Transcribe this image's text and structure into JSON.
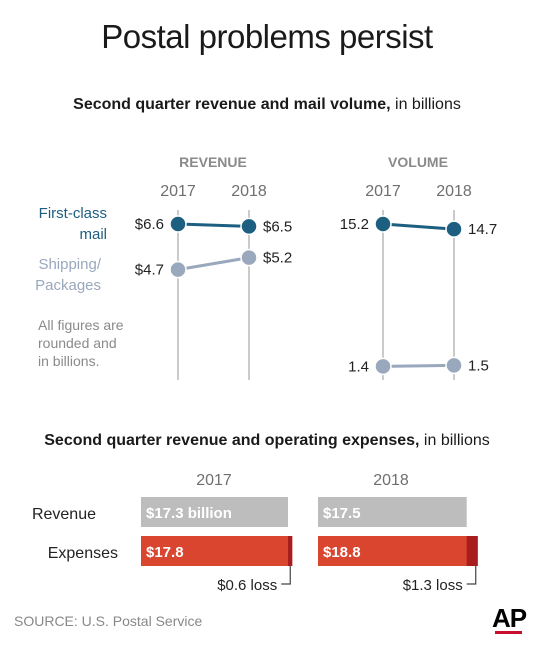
{
  "title": "Postal problems persist",
  "subtitle1": {
    "bold": "Second quarter revenue and mail volume,",
    "normal": " in billions"
  },
  "subtitle2": {
    "bold": "Second quarter revenue and operating expenses,",
    "normal": " in billions"
  },
  "source": "SOURCE: U.S. Postal Service",
  "logo": "AP",
  "colors": {
    "first_class": "#1c5f80",
    "shipping": "#99a8bc",
    "revenue_bar": "#bdbdbd",
    "expense_bar": "#d9452f",
    "loss": "#a81e1e",
    "axis": "#a8a8a8",
    "muted_text": "#8a8a8a"
  },
  "chart_data": [
    {
      "type": "line",
      "panel_label": "REVENUE",
      "x": [
        "2017",
        "2018"
      ],
      "series": [
        {
          "name": "First-class mail",
          "values": [
            6.6,
            6.5
          ],
          "labels": [
            "$6.6",
            "$6.5"
          ]
        },
        {
          "name": "Shipping/ Packages",
          "values": [
            4.7,
            5.2
          ],
          "labels": [
            "$4.7",
            "$5.2"
          ]
        }
      ]
    },
    {
      "type": "line",
      "panel_label": "VOLUME",
      "x": [
        "2017",
        "2018"
      ],
      "series": [
        {
          "name": "First-class mail",
          "values": [
            15.2,
            14.7
          ],
          "labels": [
            "15.2",
            "14.7"
          ]
        },
        {
          "name": "Shipping/ Packages",
          "values": [
            1.4,
            1.5
          ],
          "labels": [
            "1.4",
            "1.5"
          ]
        }
      ]
    },
    {
      "type": "bar",
      "categories": [
        "2017",
        "2018"
      ],
      "series": [
        {
          "name": "Revenue",
          "values": [
            17.3,
            17.5
          ],
          "labels": [
            "$17.3 billion",
            "$17.5"
          ]
        },
        {
          "name": "Expenses",
          "values": [
            17.8,
            18.8
          ],
          "labels": [
            "$17.8",
            "$18.8"
          ]
        }
      ],
      "loss": {
        "values": [
          0.6,
          1.3
        ],
        "labels": [
          "$0.6 loss",
          "$1.3 loss"
        ]
      }
    }
  ],
  "legend": {
    "first_class": [
      "First-class",
      "mail"
    ],
    "shipping": [
      "Shipping/",
      "Packages"
    ]
  },
  "note": [
    "All figures are",
    "rounded and",
    "in billions."
  ]
}
